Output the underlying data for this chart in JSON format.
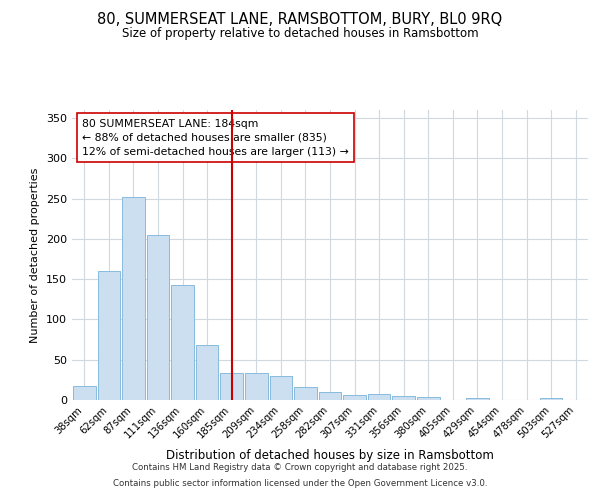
{
  "title_line1": "80, SUMMERSEAT LANE, RAMSBOTTOM, BURY, BL0 9RQ",
  "title_line2": "Size of property relative to detached houses in Ramsbottom",
  "xlabel": "Distribution of detached houses by size in Ramsbottom",
  "ylabel": "Number of detached properties",
  "categories": [
    "38sqm",
    "62sqm",
    "87sqm",
    "111sqm",
    "136sqm",
    "160sqm",
    "185sqm",
    "209sqm",
    "234sqm",
    "258sqm",
    "282sqm",
    "307sqm",
    "331sqm",
    "356sqm",
    "380sqm",
    "405sqm",
    "429sqm",
    "454sqm",
    "478sqm",
    "503sqm",
    "527sqm"
  ],
  "values": [
    18,
    160,
    252,
    205,
    143,
    68,
    33,
    33,
    30,
    16,
    10,
    6,
    7,
    5,
    4,
    0,
    2,
    0,
    0,
    2,
    0
  ],
  "bar_color": "#ccdff0",
  "bar_edgecolor": "#88bbdd",
  "grid_color": "#d0d8e0",
  "vline_x_index": 6,
  "vline_color": "#cc0000",
  "annotation_text": "80 SUMMERSEAT LANE: 184sqm\n← 88% of detached houses are smaller (835)\n12% of semi-detached houses are larger (113) →",
  "annotation_box_edgecolor": "#cc0000",
  "annotation_box_facecolor": "#ffffff",
  "ylim": [
    0,
    360
  ],
  "yticks": [
    0,
    50,
    100,
    150,
    200,
    250,
    300,
    350
  ],
  "footer_line1": "Contains HM Land Registry data © Crown copyright and database right 2025.",
  "footer_line2": "Contains public sector information licensed under the Open Government Licence v3.0.",
  "background_color": "#ffffff",
  "plot_background_color": "#ffffff"
}
